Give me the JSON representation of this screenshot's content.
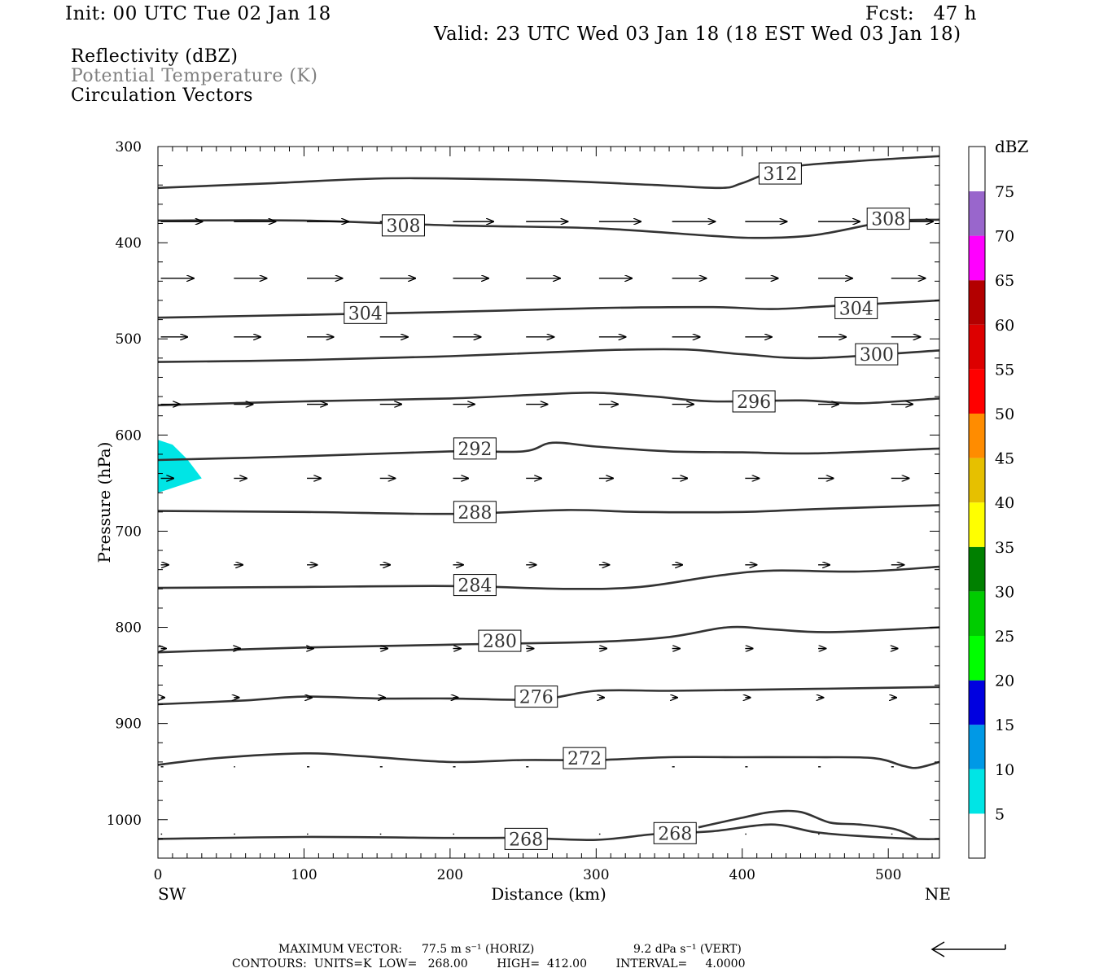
{
  "header": {
    "init": "Init: 00 UTC Tue 02 Jan 18",
    "fcst": "Fcst:   47 h",
    "valid": "Valid: 23 UTC Wed 03 Jan 18 (18 EST Wed 03 Jan 18)"
  },
  "legend_lines": [
    {
      "text": "Reflectivity (dBZ)",
      "color": "#000000"
    },
    {
      "text": "Potential Temperature (K)",
      "color": "#808080"
    },
    {
      "text": "Circulation Vectors",
      "color": "#000000"
    }
  ],
  "chart_data": {
    "type": "cross-section",
    "xlabel": "Distance (km)",
    "ylabel": "Pressure (hPa)",
    "x_left_label": "SW",
    "x_right_label": "NE",
    "xlim": [
      0,
      535
    ],
    "ylim": [
      1040,
      300
    ],
    "x_ticks": [
      0,
      100,
      200,
      300,
      400,
      500
    ],
    "y_ticks": [
      300,
      400,
      500,
      600,
      700,
      800,
      900,
      1000
    ],
    "colorbar": {
      "unit": "dBZ",
      "labels": [
        "5",
        "10",
        "15",
        "20",
        "25",
        "30",
        "35",
        "40",
        "45",
        "50",
        "55",
        "60",
        "65",
        "70",
        "75"
      ],
      "colors": [
        "#00e5e5",
        "#0099e6",
        "#0000e0",
        "#00ff00",
        "#00cc00",
        "#008000",
        "#ffff00",
        "#e6c000",
        "#ff8c00",
        "#ff0000",
        "#dd0000",
        "#b30000",
        "#ff00ff",
        "#9966cc",
        "#ffffff"
      ]
    },
    "reflectivity_areas": [
      {
        "dbz_range": [
          5,
          10
        ],
        "points": [
          [
            0,
            605
          ],
          [
            10,
            610
          ],
          [
            20,
            625
          ],
          [
            30,
            645
          ],
          [
            0,
            660
          ]
        ]
      }
    ],
    "theta_contours": [
      {
        "value": 312,
        "points": [
          [
            0,
            343
          ],
          [
            80,
            338
          ],
          [
            160,
            333
          ],
          [
            260,
            335
          ],
          [
            340,
            340
          ],
          [
            385,
            343
          ],
          [
            400,
            338
          ],
          [
            430,
            322
          ],
          [
            480,
            315
          ],
          [
            535,
            310
          ]
        ],
        "labels": [
          [
            426,
            328
          ]
        ]
      },
      {
        "value": 308,
        "points": [
          [
            0,
            377
          ],
          [
            100,
            377
          ],
          [
            200,
            382
          ],
          [
            300,
            385
          ],
          [
            380,
            393
          ],
          [
            410,
            395
          ],
          [
            450,
            392
          ],
          [
            500,
            378
          ],
          [
            535,
            376
          ]
        ],
        "labels": [
          [
            168,
            382
          ],
          [
            500,
            375
          ]
        ]
      },
      {
        "value": 304,
        "points": [
          [
            0,
            478
          ],
          [
            100,
            475
          ],
          [
            200,
            472
          ],
          [
            300,
            468
          ],
          [
            380,
            467
          ],
          [
            420,
            469
          ],
          [
            460,
            466
          ],
          [
            535,
            460
          ]
        ],
        "labels": [
          [
            142,
            473
          ],
          [
            478,
            468
          ]
        ]
      },
      {
        "value": 300,
        "points": [
          [
            0,
            524
          ],
          [
            100,
            522
          ],
          [
            200,
            518
          ],
          [
            300,
            512
          ],
          [
            360,
            511
          ],
          [
            400,
            516
          ],
          [
            450,
            520
          ],
          [
            535,
            512
          ]
        ],
        "labels": [
          [
            492,
            516
          ]
        ]
      },
      {
        "value": 296,
        "points": [
          [
            0,
            569
          ],
          [
            100,
            565
          ],
          [
            200,
            562
          ],
          [
            260,
            558
          ],
          [
            300,
            556
          ],
          [
            340,
            560
          ],
          [
            380,
            565
          ],
          [
            440,
            564
          ],
          [
            480,
            567
          ],
          [
            535,
            562
          ]
        ],
        "labels": [
          [
            408,
            565
          ]
        ]
      },
      {
        "value": 292,
        "points": [
          [
            0,
            626
          ],
          [
            100,
            622
          ],
          [
            200,
            617
          ],
          [
            250,
            617
          ],
          [
            270,
            608
          ],
          [
            300,
            612
          ],
          [
            350,
            617
          ],
          [
            400,
            618
          ],
          [
            450,
            619
          ],
          [
            535,
            614
          ]
        ],
        "labels": [
          [
            217,
            614
          ]
        ]
      },
      {
        "value": 288,
        "points": [
          [
            0,
            679
          ],
          [
            100,
            680
          ],
          [
            200,
            682
          ],
          [
            280,
            678
          ],
          [
            330,
            680
          ],
          [
            400,
            680
          ],
          [
            450,
            677
          ],
          [
            535,
            673
          ]
        ],
        "labels": [
          [
            217,
            680
          ]
        ]
      },
      {
        "value": 284,
        "points": [
          [
            0,
            759
          ],
          [
            100,
            758
          ],
          [
            200,
            757
          ],
          [
            280,
            760
          ],
          [
            330,
            758
          ],
          [
            380,
            747
          ],
          [
            420,
            741
          ],
          [
            480,
            742
          ],
          [
            535,
            737
          ]
        ],
        "labels": [
          [
            217,
            756
          ]
        ]
      },
      {
        "value": 280,
        "points": [
          [
            0,
            826
          ],
          [
            100,
            821
          ],
          [
            200,
            818
          ],
          [
            300,
            815
          ],
          [
            350,
            810
          ],
          [
            390,
            800
          ],
          [
            420,
            802
          ],
          [
            460,
            805
          ],
          [
            535,
            800
          ]
        ],
        "labels": [
          [
            234,
            814
          ]
        ]
      },
      {
        "value": 276,
        "points": [
          [
            0,
            880
          ],
          [
            60,
            876
          ],
          [
            100,
            872
          ],
          [
            150,
            874
          ],
          [
            200,
            874
          ],
          [
            260,
            875
          ],
          [
            300,
            866
          ],
          [
            350,
            866
          ],
          [
            400,
            865
          ],
          [
            450,
            864
          ],
          [
            535,
            862
          ]
        ],
        "labels": [
          [
            259,
            872
          ]
        ]
      },
      {
        "value": 272,
        "points": [
          [
            0,
            943
          ],
          [
            40,
            936
          ],
          [
            100,
            931
          ],
          [
            140,
            934
          ],
          [
            200,
            940
          ],
          [
            250,
            938
          ],
          [
            300,
            938
          ],
          [
            350,
            935
          ],
          [
            400,
            935
          ],
          [
            450,
            935
          ],
          [
            490,
            936
          ],
          [
            510,
            944
          ],
          [
            520,
            946
          ],
          [
            535,
            940
          ]
        ],
        "labels": [
          [
            292,
            936
          ]
        ]
      },
      {
        "value": 268,
        "points": [
          [
            0,
            1020
          ],
          [
            100,
            1018
          ],
          [
            200,
            1019
          ],
          [
            250,
            1019
          ],
          [
            300,
            1021
          ],
          [
            340,
            1015
          ],
          [
            380,
            1012
          ],
          [
            420,
            1005
          ],
          [
            450,
            1013
          ],
          [
            480,
            1017
          ],
          [
            520,
            1020
          ],
          [
            535,
            1020
          ]
        ],
        "labels": [
          [
            252,
            1020
          ],
          [
            354,
            1014
          ]
        ]
      },
      {
        "value": 268,
        "points": [
          [
            370,
            1008
          ],
          [
            400,
            998
          ],
          [
            420,
            992
          ],
          [
            440,
            992
          ],
          [
            460,
            1003
          ],
          [
            480,
            1005
          ],
          [
            505,
            1010
          ],
          [
            520,
            1020
          ]
        ],
        "labels": []
      }
    ],
    "wind_vectors": [
      {
        "p": 378,
        "u": [
          33,
          33,
          33,
          32,
          32,
          33,
          33,
          34,
          33,
          33,
          33,
          31,
          32,
          33
        ]
      },
      {
        "p": 437,
        "u": [
          26,
          26,
          28,
          28,
          28,
          27,
          26,
          27,
          26,
          27,
          27,
          26,
          26,
          27
        ]
      },
      {
        "p": 498,
        "u": [
          21,
          21,
          21,
          22,
          22,
          22,
          21,
          22,
          21,
          22,
          23,
          22,
          21,
          22
        ]
      },
      {
        "p": 568,
        "u": [
          15,
          15,
          16,
          17,
          17,
          17,
          15,
          17,
          16,
          16,
          17,
          16,
          16,
          16
        ]
      },
      {
        "p": 645,
        "u": [
          10,
          10,
          11,
          12,
          12,
          12,
          11,
          12,
          11,
          12,
          14,
          13,
          13,
          13
        ]
      },
      {
        "p": 735,
        "u": [
          6,
          7,
          8,
          8,
          8,
          8,
          8,
          8,
          9,
          9,
          10,
          10,
          9,
          10
        ]
      },
      {
        "p": 822,
        "u": [
          4,
          5,
          5,
          6,
          6,
          6,
          6,
          6,
          6,
          6,
          5,
          6,
          6,
          6
        ]
      },
      {
        "p": 873,
        "u": [
          3,
          4,
          4,
          4,
          4,
          4,
          4,
          4,
          4,
          4,
          4,
          4,
          4,
          4
        ]
      },
      {
        "p": 945,
        "u": [
          2,
          1,
          2,
          2,
          2,
          2,
          2,
          2,
          2,
          2,
          2,
          2,
          2,
          2
        ]
      },
      {
        "p": 1015,
        "u": [
          1,
          1,
          1,
          1,
          1,
          1,
          1,
          1,
          1,
          1,
          1,
          1,
          1,
          1
        ]
      }
    ]
  },
  "footer": {
    "max_vector_label": "MAXIMUM VECTOR:",
    "max_vector_horiz": "77.5 m s⁻¹ (HORIZ)",
    "max_vector_vert": "9.2 dPa s⁻¹ (VERT)",
    "contours_text": "CONTOURS:  UNITS=K  LOW=   268.00        HIGH=  412.00        INTERVAL=     4.0000"
  }
}
